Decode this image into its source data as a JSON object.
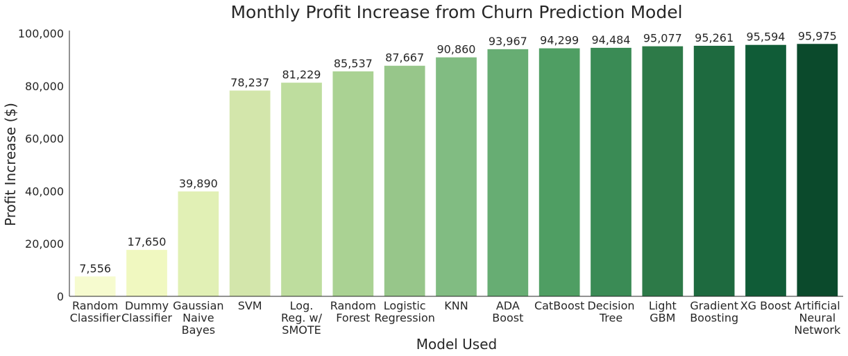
{
  "chart_data": {
    "type": "bar",
    "title": "Monthly Profit Increase from Churn Prediction Model",
    "xlabel": "Model Used",
    "ylabel": "Profit Increase ($)",
    "ylim": [
      0,
      100000
    ],
    "yticks": [
      "0",
      "20,000",
      "40,000",
      "60,000",
      "80,000",
      "100,000"
    ],
    "ytick_values": [
      0,
      20000,
      40000,
      60000,
      80000,
      100000
    ],
    "grid": false,
    "categories": [
      [
        "Random",
        "Classifier"
      ],
      [
        "Dummy",
        "Classifier"
      ],
      [
        "Gaussian",
        "Naive",
        "Bayes"
      ],
      [
        "SVM"
      ],
      [
        "Log.",
        "Reg. w/",
        "SMOTE"
      ],
      [
        "Random",
        "Forest"
      ],
      [
        "Logistic",
        "Regression"
      ],
      [
        "KNN"
      ],
      [
        "ADA",
        "Boost"
      ],
      [
        "CatBoost"
      ],
      [
        "Decision",
        "Tree"
      ],
      [
        "Light",
        "GBM"
      ],
      [
        "Gradient",
        "Boosting"
      ],
      [
        "XG Boost"
      ],
      [
        "Artificial",
        "Neural",
        "Network"
      ]
    ],
    "values": [
      7556,
      17650,
      39890,
      78237,
      81229,
      85537,
      87667,
      90860,
      93967,
      94299,
      94484,
      95077,
      95261,
      95594,
      95975
    ],
    "value_labels": [
      "7,556",
      "17,650",
      "39,890",
      "78,237",
      "81,229",
      "85,537",
      "87,667",
      "90,860",
      "93,967",
      "94,299",
      "94,484",
      "95,077",
      "95,261",
      "95,594",
      "95,975"
    ],
    "colors": [
      "#f6fbcf",
      "#f0f8c0",
      "#e1f0b5",
      "#d3e6ab",
      "#bedd9e",
      "#aad293",
      "#97c68a",
      "#81bc82",
      "#67ad73",
      "#4f9e63",
      "#3a8b55",
      "#2d7a48",
      "#1e6a3f",
      "#105c37",
      "#0b4a2c"
    ]
  }
}
